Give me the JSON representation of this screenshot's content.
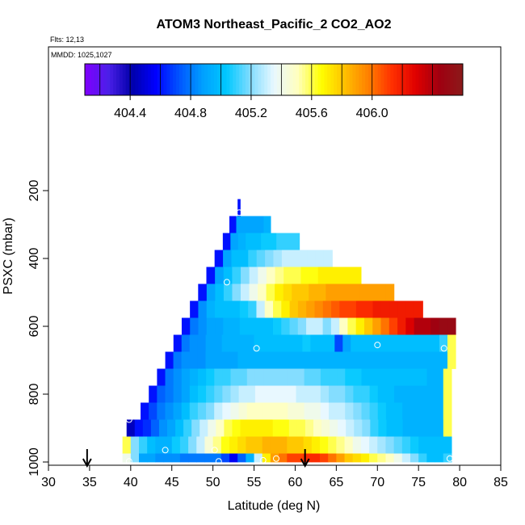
{
  "chart_data": {
    "type": "heatmap",
    "title": "ATOM3 Northeast_Pacific_2 CO2_AO2",
    "annotations": {
      "flights": "Flts: 12,13",
      "mmdd": "MMDD: 1025,1027"
    },
    "xlabel": "Latitude (deg N)",
    "ylabel": "PSXC (mbar)",
    "xlim": [
      30,
      85
    ],
    "ylim": [
      1000,
      0
    ],
    "x_ticks": [
      30,
      35,
      40,
      45,
      50,
      55,
      60,
      65,
      70,
      75,
      80,
      85
    ],
    "y_ticks": [
      200,
      400,
      600,
      800,
      1000
    ],
    "colorbar": {
      "range": [
        404.1,
        406.6
      ],
      "ticks": [
        404.4,
        404.8,
        405.2,
        405.6,
        406.0
      ],
      "tick_labels": [
        "404.4",
        "404.8",
        "405.2",
        "405.6",
        "406.0"
      ],
      "colors": [
        "#7f00ff",
        "#4b1fe8",
        "#0000aa",
        "#0000ff",
        "#0055ff",
        "#00a0ff",
        "#00c8ff",
        "#80dcff",
        "#e8f8ff",
        "#ffffc0",
        "#ffff00",
        "#ffc000",
        "#ff8000",
        "#ff3000",
        "#e00000",
        "#a00010",
        "#8b1a1a"
      ]
    },
    "rows": [
      {
        "p": 250,
        "x0": 53.0,
        "x1": 53.3,
        "v": [
          404.6
        ]
      },
      {
        "p": 300,
        "x0": 52.0,
        "x1": 57.0,
        "v": [
          404.6,
          404.9,
          404.9,
          404.9,
          404.9,
          404.95
        ]
      },
      {
        "p": 350,
        "x0": 51.2,
        "x1": 60.5,
        "v": [
          404.6,
          404.9,
          404.95,
          405.0,
          405.0,
          405.05,
          405.05,
          405.1,
          405.1,
          405.1
        ]
      },
      {
        "p": 400,
        "x0": 50.2,
        "x1": 64.5,
        "v": [
          404.6,
          404.9,
          405.0,
          405.0,
          405.1,
          405.15,
          405.2,
          405.25,
          405.3,
          405.3,
          405.3,
          405.3,
          405.3,
          405.3
        ]
      },
      {
        "p": 450,
        "x0": 49.2,
        "x1": 68.0,
        "v": [
          404.6,
          404.9,
          405.0,
          405.1,
          405.2,
          405.3,
          405.4,
          405.5,
          405.55,
          405.6,
          405.6,
          405.65,
          405.65,
          405.7,
          405.7,
          405.7,
          405.7,
          405.7
        ]
      },
      {
        "p": 500,
        "x0": 48.2,
        "x1": 72.0,
        "v": [
          404.6,
          404.9,
          405.0,
          405.1,
          405.2,
          405.3,
          405.4,
          405.5,
          405.6,
          405.7,
          405.75,
          405.8,
          405.8,
          405.85,
          405.85,
          405.9,
          405.9,
          405.9,
          405.9,
          405.9,
          405.9,
          405.9,
          405.9
        ]
      },
      {
        "p": 550,
        "x0": 47.2,
        "x1": 75.5,
        "v": [
          404.6,
          404.85,
          404.95,
          405.0,
          405.0,
          405.0,
          405.05,
          405.1,
          405.3,
          405.5,
          405.6,
          405.7,
          405.8,
          405.85,
          405.9,
          405.95,
          406.0,
          406.05,
          406.1,
          406.1,
          406.15,
          406.15,
          406.2,
          406.2,
          406.2,
          406.2,
          406.2,
          406.2
        ]
      },
      {
        "p": 600,
        "x0": 46.2,
        "x1": 79.5,
        "v": [
          404.6,
          404.8,
          404.85,
          404.9,
          404.9,
          404.95,
          404.95,
          405.0,
          405.0,
          405.0,
          405.0,
          405.05,
          405.1,
          405.15,
          405.2,
          405.3,
          405.3,
          405.2,
          405.3,
          405.5,
          405.6,
          405.7,
          405.8,
          405.9,
          406.0,
          406.1,
          406.2,
          406.3,
          406.4,
          406.4,
          406.45,
          406.5,
          406.5
        ]
      },
      {
        "p": 650,
        "x0": 45.2,
        "x1": 79.5,
        "v": [
          404.6,
          404.8,
          404.85,
          404.85,
          404.9,
          404.9,
          404.95,
          404.95,
          404.95,
          404.95,
          405.0,
          405.0,
          405.0,
          405.0,
          405.0,
          405.0,
          405.05,
          405.0,
          405.0,
          405.0,
          404.7,
          404.9,
          405.0,
          405.0,
          405.0,
          405.0,
          405.0,
          405.0,
          405.0,
          405.0,
          405.0,
          405.0,
          405.0,
          405.1,
          405.6
        ]
      },
      {
        "p": 700,
        "x0": 44.2,
        "x1": 79.5,
        "v": [
          404.6,
          404.8,
          404.85,
          404.85,
          404.85,
          404.9,
          404.9,
          404.9,
          404.9,
          404.95,
          404.95,
          404.95,
          404.95,
          404.95,
          404.95,
          404.95,
          404.95,
          404.95,
          404.95,
          404.95,
          404.95,
          404.95,
          404.95,
          404.95,
          404.95,
          404.95,
          404.95,
          404.95,
          404.95,
          404.95,
          404.95,
          404.95,
          404.95,
          404.95,
          404.95,
          405.6
        ]
      },
      {
        "p": 750,
        "x0": 43.2,
        "x1": 79.0,
        "v": [
          404.6,
          404.8,
          404.85,
          404.9,
          404.95,
          405.0,
          405.05,
          405.1,
          405.1,
          405.15,
          405.15,
          405.2,
          405.2,
          405.2,
          405.2,
          405.2,
          405.2,
          405.2,
          405.15,
          405.15,
          405.1,
          405.1,
          405.1,
          405.05,
          405.05,
          405.0,
          405.0,
          405.0,
          405.0,
          405.0,
          405.0,
          405.0,
          405.0,
          404.95,
          404.95,
          405.6
        ]
      },
      {
        "p": 800,
        "x0": 42.2,
        "x1": 79.0,
        "v": [
          404.6,
          404.75,
          404.8,
          404.85,
          404.9,
          405.0,
          405.05,
          405.1,
          405.15,
          405.2,
          405.25,
          405.3,
          405.3,
          405.35,
          405.35,
          405.35,
          405.35,
          405.35,
          405.3,
          405.3,
          405.3,
          405.25,
          405.2,
          405.2,
          405.15,
          405.1,
          405.1,
          405.05,
          405.0,
          405.0,
          404.95,
          404.95,
          404.95,
          404.95,
          404.95,
          404.95,
          405.6
        ]
      },
      {
        "p": 850,
        "x0": 41.2,
        "x1": 79.0,
        "v": [
          404.6,
          404.7,
          404.8,
          404.85,
          404.9,
          405.0,
          405.1,
          405.15,
          405.2,
          405.3,
          405.35,
          405.4,
          405.45,
          405.5,
          405.5,
          405.5,
          405.5,
          405.5,
          405.45,
          405.45,
          405.4,
          405.4,
          405.35,
          405.3,
          405.3,
          405.25,
          405.2,
          405.15,
          405.1,
          405.05,
          405.0,
          405.0,
          404.95,
          404.95,
          404.95,
          404.95,
          404.95,
          405.6
        ]
      },
      {
        "p": 900,
        "x0": 39.5,
        "x1": 79.0,
        "v": [
          404.45,
          404.6,
          404.65,
          404.75,
          404.85,
          404.9,
          405.0,
          405.1,
          405.2,
          405.3,
          405.4,
          405.5,
          405.6,
          405.65,
          405.7,
          405.7,
          405.7,
          405.7,
          405.65,
          405.65,
          405.6,
          405.6,
          405.55,
          405.5,
          405.45,
          405.4,
          405.35,
          405.3,
          405.25,
          405.2,
          405.1,
          405.05,
          405.0,
          405.0,
          404.95,
          404.95,
          404.95,
          404.95,
          404.95,
          405.6
        ]
      },
      {
        "p": 950,
        "x0": 39.0,
        "x1": 79.0,
        "v": [
          405.6,
          405.2,
          405.1,
          405.0,
          404.95,
          404.95,
          405.05,
          405.1,
          405.2,
          405.3,
          405.45,
          405.55,
          405.65,
          405.7,
          405.75,
          405.8,
          405.8,
          405.85,
          405.85,
          405.85,
          405.8,
          405.8,
          405.75,
          405.7,
          405.65,
          405.6,
          405.55,
          405.5,
          405.4,
          405.35,
          405.3,
          405.25,
          405.2,
          405.15,
          405.1,
          405.05,
          405.0,
          405.0,
          405.0,
          405.0
        ]
      },
      {
        "p": 990,
        "x0": 39.0,
        "x1": 79.0,
        "v": [
          405.4,
          405.2,
          404.9,
          404.9,
          404.85,
          404.85,
          404.85,
          404.8,
          404.8,
          404.8,
          404.8,
          404.8,
          404.7,
          404.55,
          404.75,
          404.95,
          405.3,
          405.7,
          405.9,
          406.0,
          406.1,
          406.1,
          406.15,
          406.15,
          406.1,
          406.0,
          405.9,
          405.8,
          405.75,
          405.7,
          405.6,
          405.55,
          405.5,
          405.4,
          405.3,
          405.2,
          405.1,
          405.0,
          405.0,
          405.1
        ]
      }
    ],
    "row_height": 50,
    "points": [
      {
        "lat": 53.2,
        "p": 265
      },
      {
        "lat": 51.7,
        "p": 470
      },
      {
        "lat": 55.3,
        "p": 665
      },
      {
        "lat": 70.0,
        "p": 655
      },
      {
        "lat": 78.1,
        "p": 665
      },
      {
        "lat": 79.3,
        "p": 565
      },
      {
        "lat": 39.8,
        "p": 875
      },
      {
        "lat": 44.2,
        "p": 965
      },
      {
        "lat": 50.2,
        "p": 965
      },
      {
        "lat": 39.8,
        "p": 998
      },
      {
        "lat": 50.7,
        "p": 998
      },
      {
        "lat": 56.1,
        "p": 995
      },
      {
        "lat": 57.7,
        "p": 990
      },
      {
        "lat": 78.8,
        "p": 990
      }
    ],
    "arrows": [
      34.7,
      61.2
    ]
  }
}
